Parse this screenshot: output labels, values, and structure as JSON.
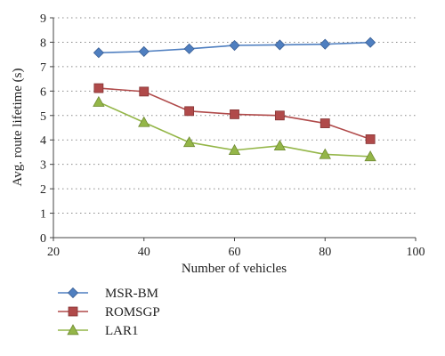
{
  "chart_data": {
    "type": "line",
    "title": "",
    "xlabel": "Number of vehicles",
    "ylabel": "Avg. route lifetime (s)",
    "xlim": [
      20,
      100
    ],
    "ylim": [
      0,
      9
    ],
    "x_ticks": [
      20,
      40,
      60,
      80,
      100
    ],
    "y_ticks": [
      0,
      1,
      2,
      3,
      4,
      5,
      6,
      7,
      8,
      9
    ],
    "grid": "horizontal dotted",
    "legend_position": "bottom-left",
    "x": [
      30,
      40,
      50,
      60,
      70,
      80,
      90
    ],
    "series": [
      {
        "name": "MSR-BM",
        "marker": "diamond",
        "color": "#4f7fc0",
        "values": [
          7.57,
          7.62,
          7.73,
          7.87,
          7.89,
          7.92,
          7.99
        ]
      },
      {
        "name": "ROMSGP",
        "marker": "square",
        "color": "#b04a4a",
        "values": [
          6.12,
          5.98,
          5.18,
          5.05,
          5.0,
          4.68,
          4.03
        ]
      },
      {
        "name": "LAR1",
        "marker": "triangle",
        "color": "#94b648",
        "values": [
          5.55,
          4.72,
          3.9,
          3.58,
          3.76,
          3.41,
          3.32
        ]
      }
    ]
  }
}
